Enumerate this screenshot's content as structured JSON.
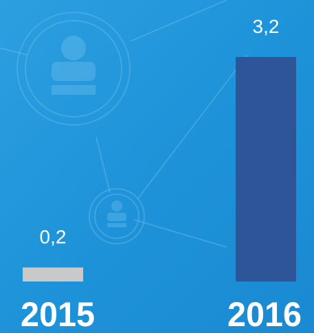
{
  "chart_data": {
    "type": "bar",
    "categories": [
      "2015",
      "2016"
    ],
    "values": [
      0.2,
      3.2
    ],
    "value_labels": [
      "0,2",
      "3,2"
    ],
    "colors": [
      "#c9c9c9",
      "#2e5597"
    ]
  }
}
